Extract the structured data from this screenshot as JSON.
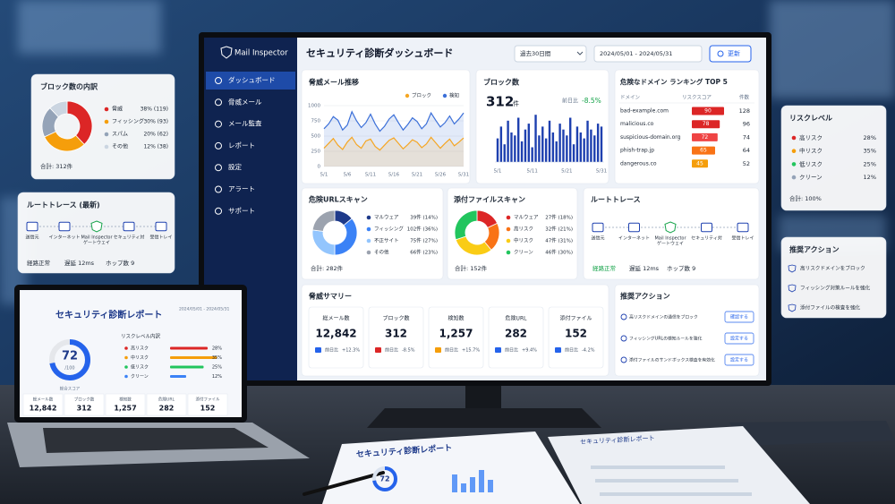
{
  "monitor": {
    "brand": "Mail Inspector",
    "menu": [
      "ダッシュボード",
      "脅威メール",
      "メール監査",
      "レポート",
      "設定",
      "アラート",
      "サポート"
    ],
    "title": "セキュリティ診断ダッシュボード",
    "period": "過去30日間",
    "date_range": "2024/05/01 - 2024/05/31",
    "refresh": "更新",
    "trend": {
      "type": "line",
      "title": "脅威メール推移",
      "categories": [
        "5/1",
        null,
        null,
        null,
        null,
        "5/6",
        null,
        null,
        null,
        null,
        "5/11",
        null,
        null,
        null,
        null,
        "5/16",
        null,
        null,
        null,
        null,
        "5/21",
        null,
        null,
        null,
        null,
        "5/26",
        null,
        null,
        null,
        null,
        "5/31"
      ],
      "series": [
        {
          "name": "ブロック",
          "color": "#f5a623",
          "values": [
            300,
            380,
            460,
            350,
            280,
            400,
            480,
            360,
            300,
            420,
            450,
            330,
            270,
            350,
            430,
            470,
            380,
            290,
            360,
            440,
            400,
            310,
            370,
            480,
            390,
            300,
            380,
            450,
            340,
            400,
            470
          ]
        },
        {
          "name": "検知",
          "color": "#3b6fd8",
          "values": [
            620,
            700,
            820,
            760,
            600,
            680,
            900,
            750,
            640,
            720,
            860,
            700,
            580,
            660,
            780,
            850,
            720,
            600,
            690,
            800,
            740,
            620,
            700,
            880,
            760,
            650,
            720,
            830,
            700,
            780,
            880
          ]
        }
      ],
      "ylim": [
        0,
        1000
      ],
      "yticks": [
        0,
        250,
        500,
        750,
        1000
      ],
      "grid": true
    },
    "blocks": {
      "type": "bar",
      "title": "ブロック数",
      "total": 312,
      "unit": "件",
      "delta_label": "前日比",
      "delta": "-8.5%",
      "categories": [
        "5/1",
        null,
        null,
        null,
        null,
        null,
        null,
        null,
        null,
        null,
        "5/11",
        null,
        null,
        null,
        null,
        null,
        null,
        null,
        null,
        null,
        "5/21",
        null,
        null,
        null,
        null,
        null,
        null,
        null,
        null,
        null,
        "5/31"
      ],
      "values": [
        8,
        12,
        6,
        14,
        10,
        9,
        15,
        7,
        11,
        13,
        5,
        16,
        9,
        12,
        8,
        14,
        10,
        7,
        13,
        11,
        9,
        15,
        6,
        12,
        10,
        8,
        14,
        11,
        9,
        13,
        12
      ],
      "color": "#1e40af"
    },
    "domains": {
      "title": "危険なドメイン ランキング TOP 5",
      "columns": [
        "ドメイン",
        "リスクスコア",
        "件数"
      ],
      "rows": [
        {
          "domain": "bad-example.com",
          "score": 90,
          "count": 128,
          "color": "#dc2626"
        },
        {
          "domain": "malicious.co",
          "score": 78,
          "count": 96,
          "color": "#dc2626"
        },
        {
          "domain": "suspicious-domain.org",
          "score": 72,
          "count": 74,
          "color": "#ef4444"
        },
        {
          "domain": "phish-trap.jp",
          "score": 65,
          "count": 64,
          "color": "#f97316"
        },
        {
          "domain": "dangerous.co",
          "score": 45,
          "count": 52,
          "color": "#f59e0b"
        }
      ]
    },
    "url_scan": {
      "type": "pie",
      "title": "危険URLスキャン",
      "items": [
        {
          "name": "マルウェア",
          "value": 14,
          "label": "39件 (14%)",
          "color": "#1e3a8a"
        },
        {
          "name": "フィッシング",
          "value": 36,
          "label": "102件 (36%)",
          "color": "#3b82f6"
        },
        {
          "name": "不正サイト",
          "value": 27,
          "label": "75件 (27%)",
          "color": "#93c5fd"
        },
        {
          "name": "その他",
          "value": 23,
          "label": "66件 (23%)",
          "color": "#9ca3af"
        }
      ],
      "total": "合計: 282件"
    },
    "attach_scan": {
      "type": "pie",
      "title": "添付ファイルスキャン",
      "items": [
        {
          "name": "マルウェア",
          "value": 18,
          "label": "27件 (18%)",
          "color": "#dc2626"
        },
        {
          "name": "高リスク",
          "value": 21,
          "label": "32件 (21%)",
          "color": "#f97316"
        },
        {
          "name": "中リスク",
          "value": 31,
          "label": "47件 (31%)",
          "color": "#facc15"
        },
        {
          "name": "クリーン",
          "value": 30,
          "label": "46件 (30%)",
          "color": "#22c55e"
        }
      ],
      "total": "合計: 152件"
    },
    "route": {
      "title": "ルートトレース",
      "nodes": [
        [
          "送信元"
        ],
        [
          "インターネット"
        ],
        [
          "Mail Inspector",
          "ゲートウェイ"
        ],
        [
          "セキュリティ対"
        ],
        [
          "受信トレイ"
        ]
      ],
      "status": "経路正常",
      "latency": "遅延 12ms",
      "hops": "ホップ数 9"
    },
    "summary": {
      "title": "脅威サマリー",
      "delta_label": "前日比",
      "kpis": [
        {
          "label": "総メール数",
          "value": "12,842",
          "delta": "+12.3%",
          "color": "#2563eb"
        },
        {
          "label": "ブロック数",
          "value": "312",
          "delta": "-8.5%",
          "color": "#dc2626"
        },
        {
          "label": "検知数",
          "value": "1,257",
          "delta": "+15.7%",
          "color": "#f59e0b"
        },
        {
          "label": "危険URL",
          "value": "282",
          "delta": "+9.4%",
          "color": "#2563eb"
        },
        {
          "label": "添付ファイル",
          "value": "152",
          "delta": "-4.2%",
          "color": "#2563eb"
        }
      ]
    },
    "actions": {
      "title": "推奨アクション",
      "items": [
        {
          "text": "高リスクドメインの通信をブロック",
          "button": "確認する"
        },
        {
          "text": "フィッシングURLの検知ルールを強化",
          "button": "設定する"
        },
        {
          "text": "添付ファイルのサンドボックス検査を有効化",
          "button": "設定する"
        }
      ]
    }
  },
  "left_panels": {
    "breakdown": {
      "type": "pie",
      "title": "ブロック数の内訳",
      "items": [
        {
          "name": "脅威",
          "value": 38,
          "label": "38% (119)",
          "color": "#dc2626"
        },
        {
          "name": "フィッシング",
          "value": 30,
          "label": "30% (93)",
          "color": "#f59e0b"
        },
        {
          "name": "スパム",
          "value": 20,
          "label": "20% (62)",
          "color": "#94a3b8"
        },
        {
          "name": "その他",
          "value": 12,
          "label": "12% (38)",
          "color": "#cbd5e1"
        }
      ],
      "total": "合計: 312件"
    },
    "route": {
      "title": "ルートトレース (最新)",
      "nodes": [
        [
          "送信元"
        ],
        [
          "インターネット"
        ],
        [
          "Mail Inspector",
          "ゲートウェイ"
        ],
        [
          "セキュリティ対"
        ],
        [
          "受信トレイ"
        ]
      ],
      "status": "経路正常",
      "latency": "遅延 12ms",
      "hops": "ホップ数 9"
    }
  },
  "right_panels": {
    "risk": {
      "title": "リスクレベル",
      "items": [
        {
          "name": "高リスク",
          "value": 28,
          "label": "28%",
          "color": "#dc2626"
        },
        {
          "name": "中リスク",
          "value": 35,
          "label": "35%",
          "color": "#f59e0b"
        },
        {
          "name": "低リスク",
          "value": 25,
          "label": "25%",
          "color": "#22c55e"
        },
        {
          "name": "クリーン",
          "value": 12,
          "label": "12%",
          "color": "#94a3b8"
        }
      ],
      "total": "合計: 100%"
    },
    "actions": {
      "title": "推奨アクション",
      "items": [
        "高リスクドメインをブロック",
        "フィッシング対策ルールを強化",
        "添付ファイルの検査を強化"
      ]
    }
  },
  "laptop": {
    "title": "セキュリティ診断レポート",
    "date_range": "2024/05/01 - 2024/05/31",
    "score": 72,
    "score_max": {
      "value": 100,
      "label": "/100"
    },
    "score_label": "総合スコア",
    "risk_title": "リスクレベル内訳",
    "risk": [
      {
        "name": "高リスク",
        "value": 28,
        "label": "28%",
        "color": "#dc2626"
      },
      {
        "name": "中リスク",
        "value": 35,
        "label": "35%",
        "color": "#f59e0b"
      },
      {
        "name": "低リスク",
        "value": 25,
        "label": "25%",
        "color": "#22c55e"
      },
      {
        "name": "クリーン",
        "value": 12,
        "label": "12%",
        "color": "#3b82f6"
      }
    ],
    "kpis": [
      {
        "label": "総メール数",
        "value": "12,842"
      },
      {
        "label": "ブロック数",
        "value": "312"
      },
      {
        "label": "検知数",
        "value": "1,257"
      },
      {
        "label": "危険URL",
        "value": "282"
      },
      {
        "label": "添付ファイル",
        "value": "152"
      }
    ]
  },
  "papers": [
    {
      "title": "セキュリティ診断レポート",
      "score": 72
    },
    {
      "title": "セキュリティ診断レポート"
    }
  ]
}
